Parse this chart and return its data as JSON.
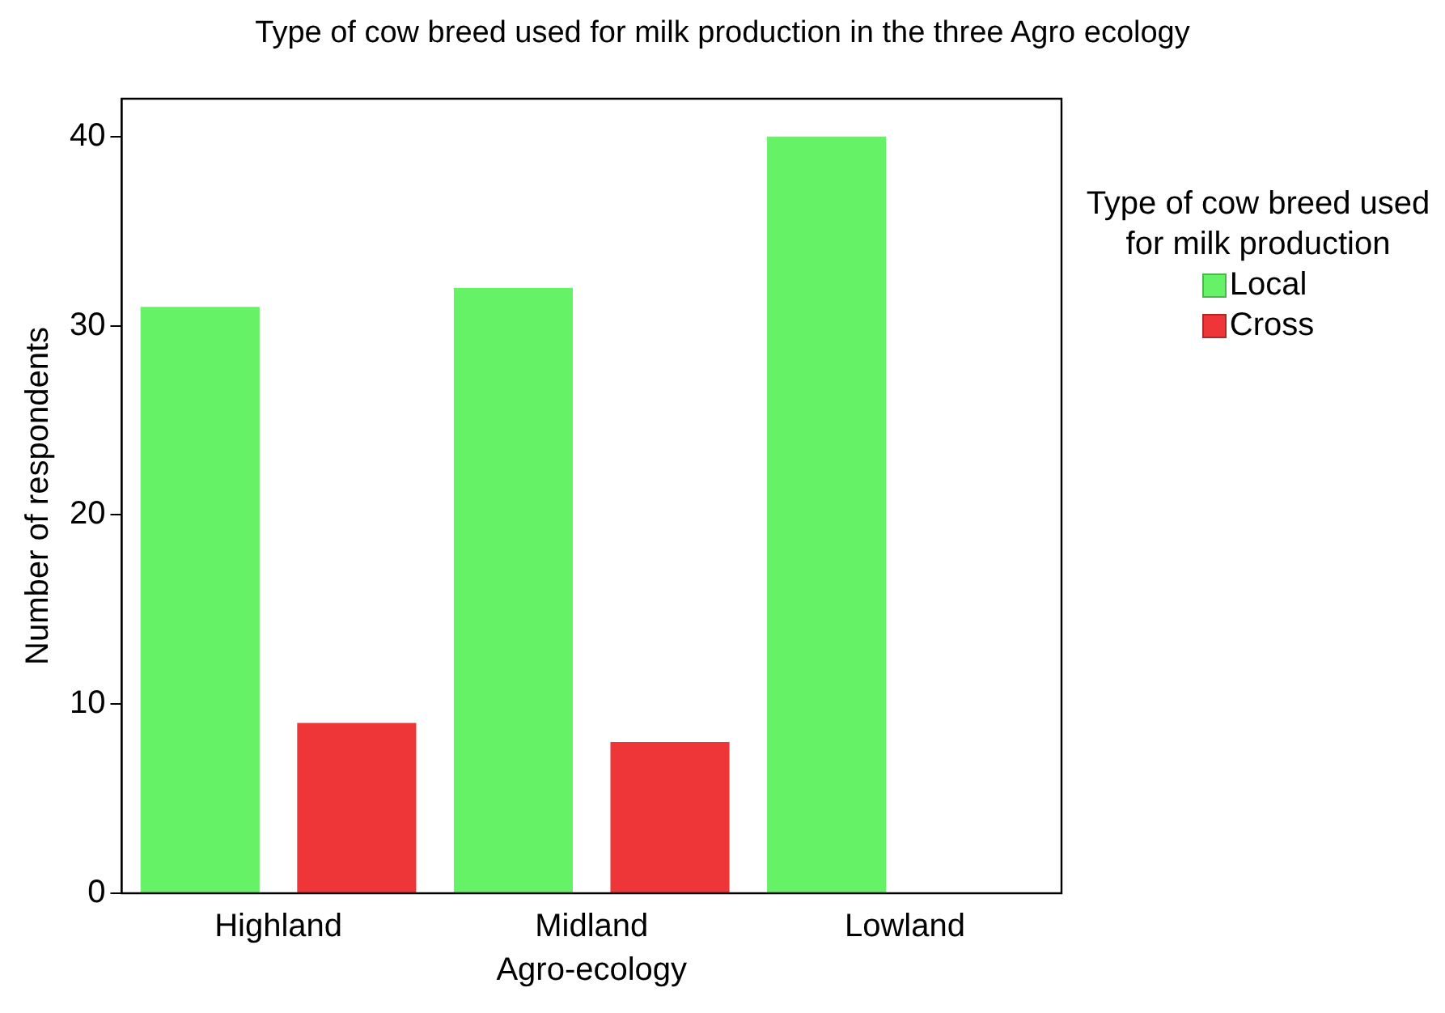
{
  "chart_data": {
    "type": "bar",
    "title": "Type of cow breed used for milk production in the three Agro ecology",
    "xlabel": "Agro-ecology",
    "ylabel": "Number of respondents",
    "legend_title": "Type of cow breed used for milk production",
    "categories": [
      "Highland",
      "Midland",
      "Lowland"
    ],
    "series": [
      {
        "name": "Local",
        "color": "#66f266",
        "values": [
          31,
          32,
          40
        ]
      },
      {
        "name": "Cross",
        "color": "#ee3638",
        "values": [
          9,
          8,
          null
        ]
      }
    ],
    "ylim": [
      0,
      42
    ],
    "yticks": [
      0,
      10,
      20,
      30,
      40
    ],
    "grid": false,
    "legend": "right"
  }
}
